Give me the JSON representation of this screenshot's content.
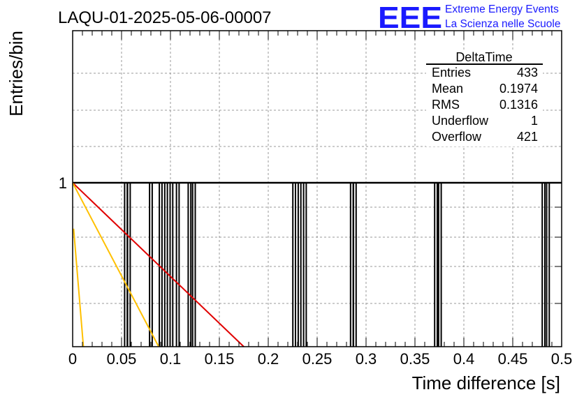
{
  "title": "LAQU-01-2025-05-06-00007",
  "logo": {
    "letters": "EEE",
    "line1": "Extreme Energy Events",
    "line2": "La Scienza nelle Scuole",
    "color": "#1a1aff"
  },
  "stats": {
    "name": "DeltaTime",
    "rows": [
      {
        "label": "Entries",
        "value": "433"
      },
      {
        "label": "Mean",
        "value": "0.1974"
      },
      {
        "label": "RMS",
        "value": "0.1316"
      },
      {
        "label": "Underflow",
        "value": "1"
      },
      {
        "label": "Overflow",
        "value": "421"
      }
    ]
  },
  "chart_data": {
    "type": "bar",
    "title": "LAQU-01-2025-05-06-00007",
    "xlabel": "Time difference [s]",
    "ylabel": "Entries/bin",
    "xlim": [
      0,
      0.5
    ],
    "x_ticks": [
      0,
      0.05,
      0.1,
      0.15,
      0.2,
      0.25,
      0.3,
      0.35,
      0.4,
      0.45,
      0.5
    ],
    "x_tick_labels": [
      "0",
      "0.05",
      "0.1",
      "0.15",
      "0.2",
      "0.25",
      "0.3",
      "0.35",
      "0.4",
      "0.45",
      "0.5"
    ],
    "y_scale": "log",
    "y_tick_labels": [
      "1"
    ],
    "grid": true,
    "bin_width": 0.0027,
    "bins": [
      {
        "x": 0.0545,
        "value": 1
      },
      {
        "x": 0.0575,
        "value": 1
      },
      {
        "x": 0.08,
        "value": 1
      },
      {
        "x": 0.09,
        "value": 1
      },
      {
        "x": 0.0955,
        "value": 1
      },
      {
        "x": 0.101,
        "value": 1
      },
      {
        "x": 0.1075,
        "value": 1
      },
      {
        "x": 0.1195,
        "value": 1
      },
      {
        "x": 0.124,
        "value": 1
      },
      {
        "x": 0.2265,
        "value": 1
      },
      {
        "x": 0.232,
        "value": 1
      },
      {
        "x": 0.2375,
        "value": 1
      },
      {
        "x": 0.2855,
        "value": 1
      },
      {
        "x": 0.2885,
        "value": 1
      },
      {
        "x": 0.3715,
        "value": 1
      },
      {
        "x": 0.3755,
        "value": 1
      },
      {
        "x": 0.4815,
        "value": 1
      },
      {
        "x": 0.486,
        "value": 1
      }
    ],
    "fit_lines": [
      {
        "color": "#e00000",
        "points": [
          [
            0,
            1
          ],
          [
            0.175,
            0
          ]
        ]
      },
      {
        "color": "#ffc000",
        "points": [
          [
            0,
            1
          ],
          [
            0.088,
            0
          ]
        ]
      },
      {
        "color": "#ffc000",
        "points": [
          [
            0.001,
            0.72
          ],
          [
            0.011,
            0
          ]
        ]
      }
    ],
    "colors": {
      "bars": "#000000",
      "grid": "#9a9a9a"
    }
  }
}
